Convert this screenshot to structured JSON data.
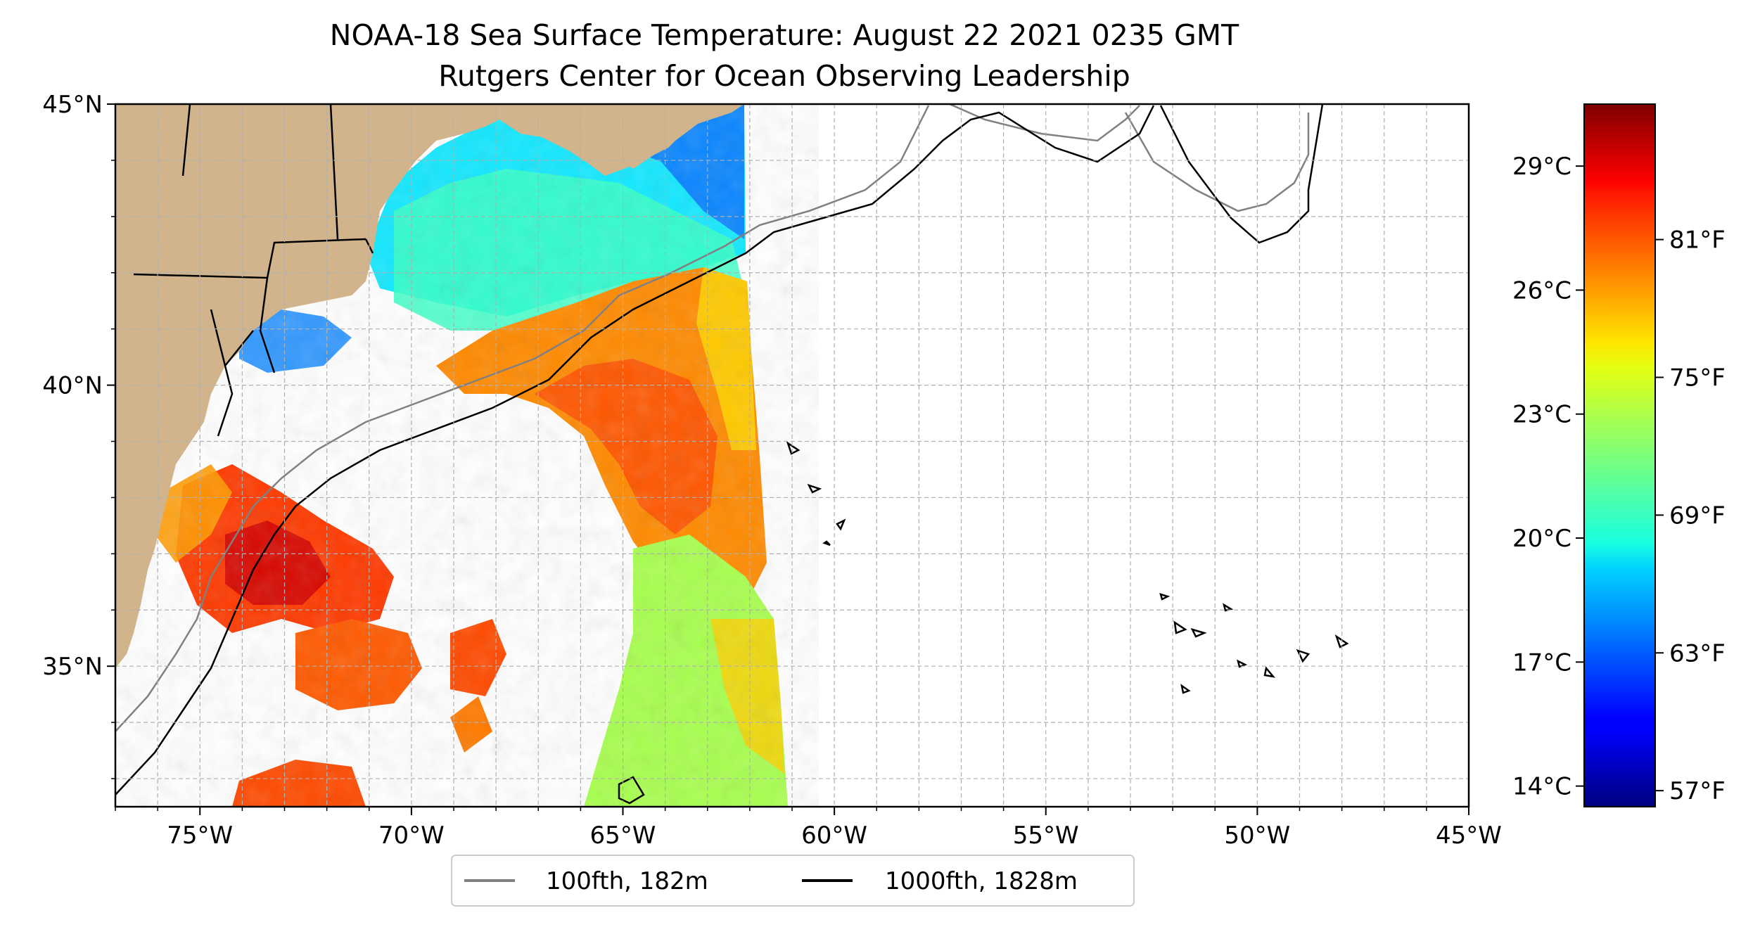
{
  "title": {
    "line1": "NOAA-18 Sea Surface Temperature: August 22 2021 0235 GMT",
    "line2": "Rutgers Center for Ocean Observing Leadership"
  },
  "map": {
    "lon_range": [
      -77,
      -45
    ],
    "lat_range": [
      32.5,
      45
    ],
    "grid": true,
    "land_color": "#d2b48c",
    "lakes_color": "#9ebce8",
    "lon_ticks": [
      {
        "value": -75,
        "label": "75°W"
      },
      {
        "value": -70,
        "label": "70°W"
      },
      {
        "value": -65,
        "label": "65°W"
      },
      {
        "value": -60,
        "label": "60°W"
      },
      {
        "value": -55,
        "label": "55°W"
      },
      {
        "value": -50,
        "label": "50°W"
      },
      {
        "value": -45,
        "label": "45°W"
      }
    ],
    "lat_ticks": [
      {
        "value": 45,
        "label": "45°N"
      },
      {
        "value": 40,
        "label": "40°N"
      },
      {
        "value": 35,
        "label": "35°N"
      }
    ]
  },
  "colorbar": {
    "colormap": "jet",
    "celsius_range": [
      13.5,
      30.5
    ],
    "celsius_ticks": [
      {
        "value": 29,
        "label": "29°C"
      },
      {
        "value": 26,
        "label": "26°C"
      },
      {
        "value": 23,
        "label": "23°C"
      },
      {
        "value": 20,
        "label": "20°C"
      },
      {
        "value": 17,
        "label": "17°C"
      },
      {
        "value": 14,
        "label": "14°C"
      }
    ],
    "fahrenheit_ticks": [
      {
        "value": 81,
        "label": "81°F"
      },
      {
        "value": 75,
        "label": "75°F"
      },
      {
        "value": 69,
        "label": "69°F"
      },
      {
        "value": 63,
        "label": "63°F"
      },
      {
        "value": 57,
        "label": "57°F"
      }
    ]
  },
  "legend": {
    "placement": "bottom-center",
    "items": [
      {
        "label": "100fth, 182m",
        "color": "#808080"
      },
      {
        "label": "1000fth, 1828m",
        "color": "#000000"
      }
    ]
  }
}
